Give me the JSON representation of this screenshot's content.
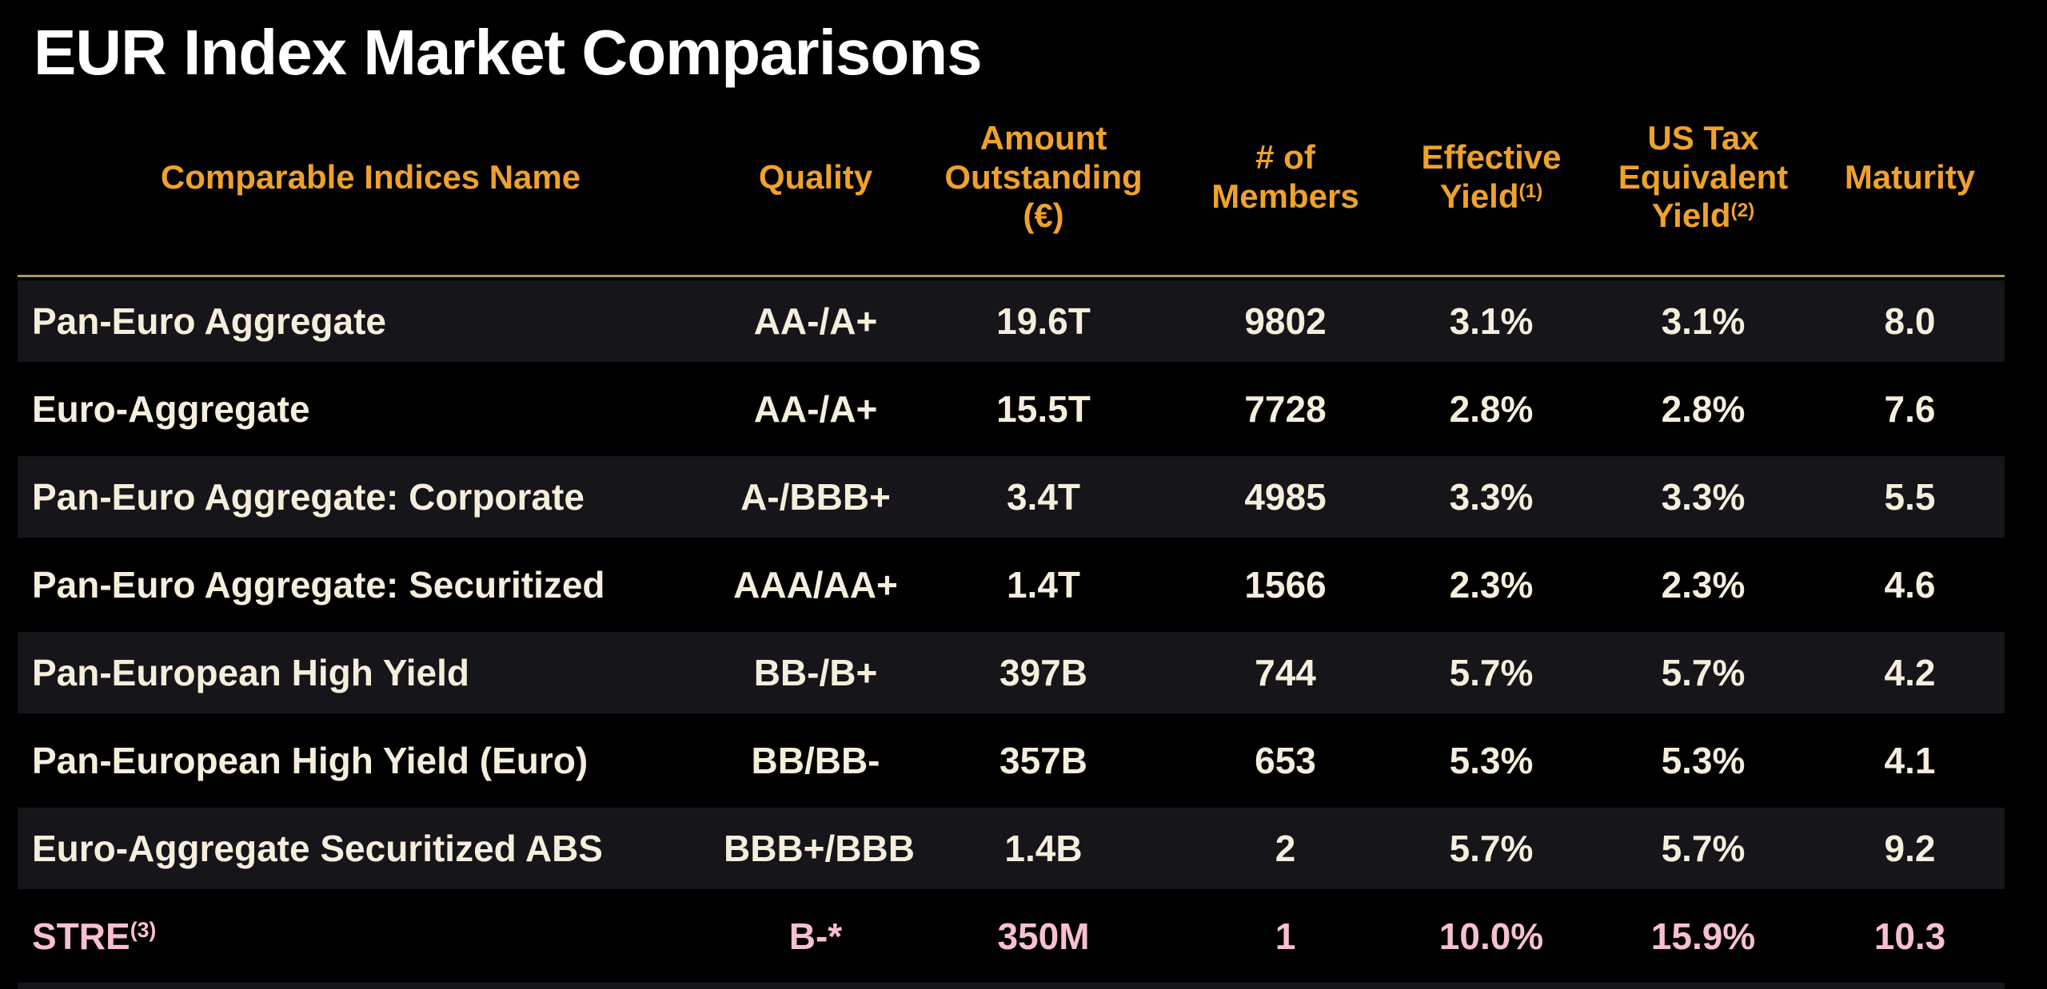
{
  "slide": {
    "title": "EUR Index Market Comparisons"
  },
  "table": {
    "header": {
      "name": "Comparable Indices Name",
      "quality": "Quality",
      "amount": {
        "line1": "Amount",
        "line2": "Outstanding",
        "line3": "(€)"
      },
      "members": {
        "line1": "# of",
        "line2": "Members"
      },
      "effective": {
        "line1": "Effective",
        "line2": "Yield",
        "sup": "(1)"
      },
      "us_tax": {
        "line1": "US Tax",
        "line2": "Equivalent",
        "line3": "Yield",
        "sup": "(2)"
      },
      "maturity": "Maturity"
    },
    "rows": [
      {
        "name": "Pan-Euro Aggregate",
        "quality": "AA-/A+",
        "amount": "19.6T",
        "members": "9802",
        "effective_yield": "3.1%",
        "us_tax_yield": "3.1%",
        "maturity": "8.0",
        "highlight": false
      },
      {
        "name": "Euro-Aggregate",
        "quality": "AA-/A+",
        "amount": "15.5T",
        "members": "7728",
        "effective_yield": "2.8%",
        "us_tax_yield": "2.8%",
        "maturity": "7.6",
        "highlight": false
      },
      {
        "name": "Pan-Euro Aggregate: Corporate",
        "quality": "A-/BBB+",
        "amount": "3.4T",
        "members": "4985",
        "effective_yield": "3.3%",
        "us_tax_yield": "3.3%",
        "maturity": "5.5",
        "highlight": false
      },
      {
        "name": "Pan-Euro Aggregate: Securitized",
        "quality": "AAA/AA+",
        "amount": "1.4T",
        "members": "1566",
        "effective_yield": "2.3%",
        "us_tax_yield": "2.3%",
        "maturity": "4.6",
        "highlight": false
      },
      {
        "name": "Pan-European High Yield",
        "quality": "BB-/B+",
        "amount": "397B",
        "members": "744",
        "effective_yield": "5.7%",
        "us_tax_yield": "5.7%",
        "maturity": "4.2",
        "highlight": false
      },
      {
        "name": "Pan-European High Yield (Euro)",
        "quality": "BB/BB-",
        "amount": "357B",
        "members": "653",
        "effective_yield": "5.3%",
        "us_tax_yield": "5.3%",
        "maturity": "4.1",
        "highlight": false
      },
      {
        "name": "Euro-Aggregate Securitized ABS",
        "quality": "BBB+/BBB",
        "amount": "1.4B",
        "members": "2",
        "effective_yield": "5.7%",
        "us_tax_yield": "5.7%",
        "maturity": "9.2",
        "highlight": false
      },
      {
        "name": "STRE",
        "name_sup": "(3)",
        "quality": "B-*",
        "amount": "350M",
        "members": "1",
        "effective_yield": "10.0%",
        "us_tax_yield": "15.9%",
        "maturity": "10.3",
        "highlight": true
      }
    ]
  },
  "chart_data": {
    "type": "table",
    "title": "EUR Index Market Comparisons",
    "columns": [
      "Comparable Indices Name",
      "Quality",
      "Amount Outstanding (€)",
      "# of Members",
      "Effective Yield(1)",
      "US Tax Equivalent Yield(2)",
      "Maturity"
    ],
    "rows": [
      [
        "Pan-Euro Aggregate",
        "AA-/A+",
        "19.6T",
        "9802",
        "3.1%",
        "3.1%",
        "8.0"
      ],
      [
        "Euro-Aggregate",
        "AA-/A+",
        "15.5T",
        "7728",
        "2.8%",
        "2.8%",
        "7.6"
      ],
      [
        "Pan-Euro Aggregate: Corporate",
        "A-/BBB+",
        "3.4T",
        "4985",
        "3.3%",
        "3.3%",
        "5.5"
      ],
      [
        "Pan-Euro Aggregate: Securitized",
        "AAA/AA+",
        "1.4T",
        "1566",
        "2.3%",
        "2.3%",
        "4.6"
      ],
      [
        "Pan-European High Yield",
        "BB-/B+",
        "397B",
        "744",
        "5.7%",
        "5.7%",
        "4.2"
      ],
      [
        "Pan-European High Yield (Euro)",
        "BB/BB-",
        "357B",
        "653",
        "5.3%",
        "5.3%",
        "4.1"
      ],
      [
        "Euro-Aggregate Securitized ABS",
        "BBB+/BBB",
        "1.4B",
        "2",
        "5.7%",
        "5.7%",
        "9.2"
      ],
      [
        "STRE(3)",
        "B-*",
        "350M",
        "1",
        "10.0%",
        "15.9%",
        "10.3"
      ]
    ]
  },
  "colors": {
    "background": "#000000",
    "title_text": "#FFFFFF",
    "header_accent": "#EFA22B",
    "rule_gold": "#AD9760",
    "data_text": "#F5EEDB",
    "highlight_text": "#F7C0CF",
    "band_row": "#15151A"
  }
}
